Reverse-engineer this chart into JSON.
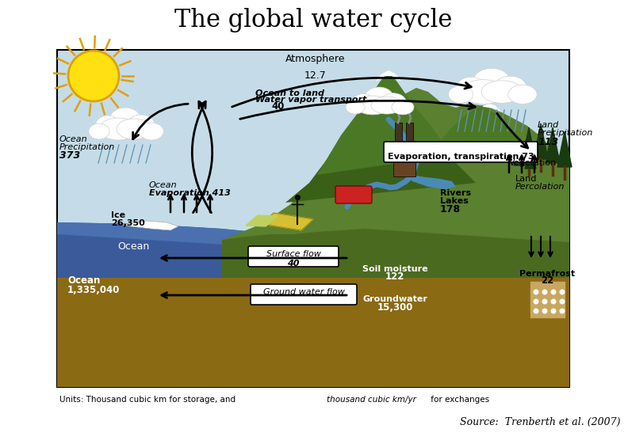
{
  "title": "The global water cycle",
  "source_text": "Source:  Trenberth et al. (2007)",
  "units_text_normal": "Units: Thousand cubic km for storage, and ",
  "units_text_italic": "thousand cubic km/yr",
  "units_text_end": " for exchanges",
  "background_color": "#ffffff",
  "title_fontsize": 22,
  "sky_color": "#c5dce8",
  "ocean_dark": "#3a5a9a",
  "ocean_mid": "#4a70b0",
  "ground_color": "#8B6a14",
  "land_dark": "#4a6a20",
  "land_mid": "#5a8030",
  "land_light": "#6a9838"
}
